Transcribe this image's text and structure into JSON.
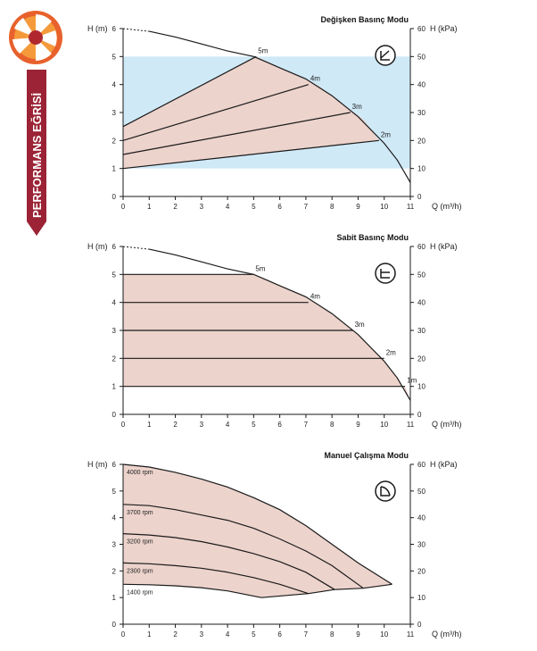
{
  "sidebar": {
    "label": "PERFORMANS EĞRİSİ",
    "colors": {
      "ribbon": "#9b2335",
      "logo_orange": "#e8612c",
      "logo_dark": "#b0282e"
    }
  },
  "colors": {
    "fill_blue": "#cfe9f7",
    "fill_pink": "#ecd3cc",
    "line": "#1a1a1a"
  },
  "chart_data": [
    {
      "type": "line",
      "title": "Değişken Basınç Modu",
      "mode_icon": "variable-pressure-icon",
      "ylabel_left": "H (m)",
      "ylabel_right": "H (kPa)",
      "xlabel": "Q (m³/h)",
      "xlim": [
        0,
        11
      ],
      "ylim": [
        0,
        6
      ],
      "ylim_right": [
        0,
        60
      ],
      "x_ticks": [
        "0",
        "1",
        "2",
        "3",
        "4",
        "5",
        "6",
        "7",
        "8",
        "9",
        "10",
        "11"
      ],
      "y_ticks": [
        "0",
        "1",
        "2",
        "3",
        "4",
        "5",
        "6"
      ],
      "y_ticks_right": [
        "0",
        "10",
        "20",
        "30",
        "40",
        "50",
        "60"
      ],
      "max_curve": [
        [
          0,
          6
        ],
        [
          1,
          5.9
        ],
        [
          2,
          5.7
        ],
        [
          3,
          5.45
        ],
        [
          4,
          5.2
        ],
        [
          5,
          5.0
        ],
        [
          5.5,
          4.8
        ],
        [
          6,
          4.6
        ],
        [
          7,
          4.2
        ],
        [
          8,
          3.6
        ],
        [
          9,
          2.85
        ],
        [
          10,
          1.9
        ],
        [
          10.5,
          1.3
        ],
        [
          11,
          0.5
        ]
      ],
      "dashed_until_x": 1.2,
      "operating_range": {
        "x": [
          0,
          11
        ],
        "y": [
          1,
          5
        ]
      },
      "setpoint_lines": [
        {
          "label": "5m",
          "points": [
            [
              0,
              2.5
            ],
            [
              5.1,
              5.0
            ]
          ]
        },
        {
          "label": "4m",
          "points": [
            [
              0,
              2.0
            ],
            [
              7.1,
              4.0
            ]
          ]
        },
        {
          "label": "3m",
          "points": [
            [
              0,
              1.5
            ],
            [
              8.7,
              3.0
            ]
          ]
        },
        {
          "label": "2m",
          "points": [
            [
              0,
              1.0
            ],
            [
              9.8,
              2.0
            ]
          ]
        }
      ]
    },
    {
      "type": "line",
      "title": "Sabit Basınç Modu",
      "mode_icon": "constant-pressure-icon",
      "ylabel_left": "H (m)",
      "ylabel_right": "H (kPa)",
      "xlabel": "Q (m³/h)",
      "xlim": [
        0,
        11
      ],
      "ylim": [
        0,
        6
      ],
      "ylim_right": [
        0,
        60
      ],
      "x_ticks": [
        "0",
        "1",
        "2",
        "3",
        "4",
        "5",
        "6",
        "7",
        "8",
        "9",
        "10",
        "11"
      ],
      "y_ticks": [
        "0",
        "1",
        "2",
        "3",
        "4",
        "5",
        "6"
      ],
      "y_ticks_right": [
        "0",
        "10",
        "20",
        "30",
        "40",
        "50",
        "60"
      ],
      "max_curve": [
        [
          0,
          6
        ],
        [
          1,
          5.9
        ],
        [
          2,
          5.7
        ],
        [
          3,
          5.45
        ],
        [
          4,
          5.2
        ],
        [
          5,
          5.0
        ],
        [
          5.5,
          4.8
        ],
        [
          6,
          4.6
        ],
        [
          7,
          4.2
        ],
        [
          8,
          3.6
        ],
        [
          9,
          2.85
        ],
        [
          10,
          1.9
        ],
        [
          10.5,
          1.3
        ],
        [
          11,
          0.5
        ]
      ],
      "dashed_until_x": 1.2,
      "setpoint_lines": [
        {
          "label": "5m",
          "points": [
            [
              0,
              5
            ],
            [
              5.0,
              5
            ]
          ]
        },
        {
          "label": "4m",
          "points": [
            [
              0,
              4
            ],
            [
              7.1,
              4
            ]
          ]
        },
        {
          "label": "3m",
          "points": [
            [
              0,
              3
            ],
            [
              8.8,
              3
            ]
          ]
        },
        {
          "label": "2m",
          "points": [
            [
              0,
              2
            ],
            [
              10.0,
              2
            ]
          ]
        },
        {
          "label": "1m",
          "points": [
            [
              0,
              1
            ],
            [
              10.8,
              1
            ]
          ]
        }
      ]
    },
    {
      "type": "line",
      "title": "Manuel Çalışma Modu",
      "mode_icon": "manual-mode-icon",
      "ylabel_left": "H (m)",
      "ylabel_right": "H (kPa)",
      "xlabel": "Q (m³/h)",
      "xlim": [
        0,
        11
      ],
      "ylim": [
        0,
        6
      ],
      "ylim_right": [
        0,
        60
      ],
      "x_ticks": [
        "0",
        "1",
        "2",
        "3",
        "4",
        "5",
        "6",
        "7",
        "8",
        "9",
        "10",
        "11"
      ],
      "y_ticks": [
        "0",
        "1",
        "2",
        "3",
        "4",
        "5",
        "6"
      ],
      "y_ticks_right": [
        "0",
        "10",
        "20",
        "30",
        "40",
        "50",
        "60"
      ],
      "speed_curves": [
        {
          "label": "4000 rpm",
          "points": [
            [
              0,
              6
            ],
            [
              1,
              5.9
            ],
            [
              2,
              5.7
            ],
            [
              3,
              5.45
            ],
            [
              4,
              5.15
            ],
            [
              5,
              4.75
            ],
            [
              6,
              4.3
            ],
            [
              7,
              3.7
            ],
            [
              8,
              3.0
            ],
            [
              9,
              2.3
            ],
            [
              10.3,
              1.5
            ]
          ]
        },
        {
          "label": "3700 rpm",
          "points": [
            [
              0,
              4.5
            ],
            [
              1,
              4.45
            ],
            [
              2,
              4.3
            ],
            [
              3,
              4.1
            ],
            [
              4,
              3.9
            ],
            [
              5,
              3.6
            ],
            [
              6,
              3.2
            ],
            [
              7,
              2.75
            ],
            [
              8,
              2.2
            ],
            [
              9.2,
              1.35
            ]
          ]
        },
        {
          "label": "3200 rpm",
          "points": [
            [
              0,
              3.4
            ],
            [
              1,
              3.35
            ],
            [
              2,
              3.25
            ],
            [
              3,
              3.1
            ],
            [
              4,
              2.9
            ],
            [
              5,
              2.65
            ],
            [
              6,
              2.35
            ],
            [
              7,
              1.95
            ],
            [
              8.1,
              1.3
            ]
          ]
        },
        {
          "label": "2300 rpm",
          "points": [
            [
              0,
              2.3
            ],
            [
              1,
              2.27
            ],
            [
              2,
              2.2
            ],
            [
              3,
              2.1
            ],
            [
              4,
              1.95
            ],
            [
              5,
              1.75
            ],
            [
              6,
              1.5
            ],
            [
              7.1,
              1.15
            ]
          ]
        },
        {
          "label": "1400 rpm",
          "points": [
            [
              0,
              1.5
            ],
            [
              1,
              1.48
            ],
            [
              2,
              1.44
            ],
            [
              3,
              1.37
            ],
            [
              4,
              1.25
            ],
            [
              5.3,
              1.0
            ]
          ]
        }
      ],
      "lower_boundary": [
        [
          5.3,
          1.0
        ],
        [
          7.1,
          1.15
        ],
        [
          8.1,
          1.3
        ],
        [
          9.2,
          1.35
        ],
        [
          10.3,
          1.5
        ]
      ]
    }
  ]
}
